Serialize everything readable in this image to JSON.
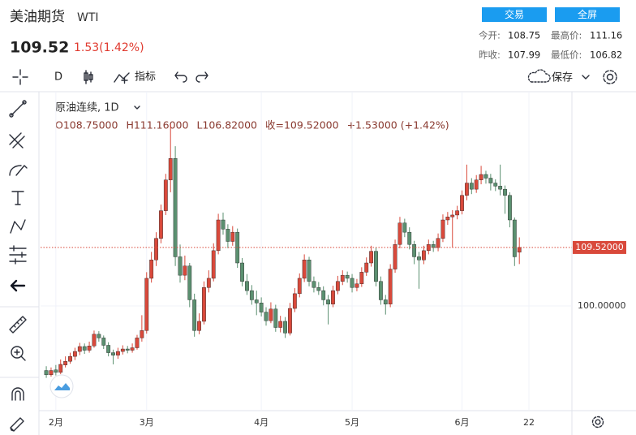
{
  "header": {
    "title": "美油期货",
    "symbol": "WTI",
    "price": "109.52",
    "change": "1.53(1.42%)",
    "buttons": [
      "交易",
      "全屏"
    ],
    "stats": [
      {
        "label": "今开:",
        "value": "108.75"
      },
      {
        "label": "最高价:",
        "value": "111.16"
      },
      {
        "label": "昨收:",
        "value": "107.99"
      },
      {
        "label": "最低价:",
        "value": "106.82"
      }
    ]
  },
  "toolbar": {
    "interval": "D",
    "indicators": "指标",
    "save": "保存"
  },
  "chart": {
    "type": "candlestick",
    "legend_title": "原油连续, 1D",
    "legend_values": [
      "O108.75000",
      "H111.16000",
      "L106.82000",
      "收=109.52000",
      "+1.53000 (+1.42%)"
    ],
    "up_color": "#d9493b",
    "down_color": "#5b9070",
    "ylim": [
      83.1,
      134.6
    ],
    "yticks": [
      {
        "value": 100,
        "label": "100.00000"
      }
    ],
    "last_price": {
      "value": 109.52,
      "label": "109.52000"
    },
    "xlim": [
      -1.2,
      110
    ],
    "xticks": [
      {
        "value": 2,
        "label": "2月"
      },
      {
        "value": 21,
        "label": "3月"
      },
      {
        "value": 45,
        "label": "4月"
      },
      {
        "value": 64,
        "label": "5月"
      },
      {
        "value": 87,
        "label": "6月"
      },
      {
        "value": 101,
        "label": "22"
      }
    ],
    "grid": true,
    "ohlc": [
      [
        89.5,
        90.2,
        88.3,
        88.8
      ],
      [
        88.8,
        90.0,
        88.5,
        89.5
      ],
      [
        89.6,
        90.4,
        88.7,
        89.2
      ],
      [
        89.2,
        91.3,
        88.9,
        90.5
      ],
      [
        90.4,
        91.8,
        90.0,
        91.0
      ],
      [
        91.0,
        92.4,
        90.6,
        91.8
      ],
      [
        91.8,
        93.2,
        91.2,
        92.6
      ],
      [
        92.6,
        94.0,
        92.0,
        93.4
      ],
      [
        93.4,
        93.9,
        92.2,
        92.8
      ],
      [
        92.8,
        94.2,
        92.4,
        93.5
      ],
      [
        93.5,
        96.0,
        93.2,
        95.4
      ],
      [
        95.4,
        95.9,
        94.2,
        94.8
      ],
      [
        94.8,
        95.2,
        93.0,
        93.6
      ],
      [
        93.6,
        94.1,
        91.8,
        92.4
      ],
      [
        92.4,
        92.9,
        90.5,
        92.0
      ],
      [
        92.0,
        93.2,
        91.4,
        92.6
      ],
      [
        92.6,
        93.6,
        92.1,
        93.0
      ],
      [
        93.0,
        93.5,
        92.3,
        92.8
      ],
      [
        92.8,
        93.9,
        92.4,
        93.2
      ],
      [
        93.2,
        95.3,
        92.9,
        94.8
      ],
      [
        94.8,
        98.5,
        94.2,
        96.0
      ],
      [
        96.0,
        105.5,
        95.5,
        104.5
      ],
      [
        104.5,
        108.8,
        103.8,
        107.5
      ],
      [
        107.5,
        112.0,
        106.5,
        111.0
      ],
      [
        111.0,
        116.5,
        110.2,
        115.5
      ],
      [
        115.5,
        121.5,
        114.8,
        120.5
      ],
      [
        120.5,
        129.6,
        118.5,
        124.0
      ],
      [
        124.0,
        126.0,
        106.5,
        108.0
      ],
      [
        108.0,
        110.0,
        103.8,
        105.0
      ],
      [
        105.0,
        108.2,
        104.2,
        106.5
      ],
      [
        106.5,
        107.0,
        99.8,
        101.0
      ],
      [
        101.0,
        102.0,
        95.0,
        96.0
      ],
      [
        96.0,
        98.8,
        95.4,
        97.5
      ],
      [
        97.5,
        104.0,
        97.0,
        103.0
      ],
      [
        103.0,
        105.8,
        102.2,
        104.5
      ],
      [
        104.5,
        110.2,
        104.0,
        109.0
      ],
      [
        109.0,
        115.0,
        108.4,
        114.0
      ],
      [
        114.0,
        115.2,
        111.6,
        112.5
      ],
      [
        112.5,
        113.3,
        109.4,
        110.5
      ],
      [
        110.5,
        113.0,
        109.8,
        112.0
      ],
      [
        112.0,
        112.6,
        106.2,
        107.0
      ],
      [
        107.0,
        107.8,
        103.2,
        104.0
      ],
      [
        104.0,
        105.2,
        101.8,
        102.5
      ],
      [
        102.5,
        103.4,
        100.2,
        101.0
      ],
      [
        101.0,
        102.5,
        98.5,
        100.5
      ],
      [
        100.5,
        101.4,
        98.3,
        99.0
      ],
      [
        99.0,
        99.8,
        96.8,
        97.6
      ],
      [
        97.6,
        100.6,
        97.2,
        99.5
      ],
      [
        99.5,
        100.2,
        95.8,
        96.5
      ],
      [
        96.5,
        98.4,
        95.7,
        97.5
      ],
      [
        97.5,
        98.2,
        94.8,
        95.6
      ],
      [
        95.6,
        100.5,
        95.2,
        99.6
      ],
      [
        99.6,
        102.9,
        99.0,
        102.0
      ],
      [
        102.0,
        105.3,
        101.4,
        104.5
      ],
      [
        104.5,
        108.4,
        103.9,
        107.5
      ],
      [
        107.5,
        108.0,
        103.2,
        104.0
      ],
      [
        104.0,
        104.8,
        102.2,
        103.0
      ],
      [
        103.0,
        103.9,
        101.8,
        102.5
      ],
      [
        102.5,
        103.2,
        100.1,
        101.0
      ],
      [
        101.0,
        101.8,
        97.0,
        100.3
      ],
      [
        100.3,
        103.3,
        99.8,
        102.5
      ],
      [
        102.5,
        104.9,
        101.9,
        104.0
      ],
      [
        104.0,
        105.8,
        103.4,
        105.0
      ],
      [
        105.0,
        105.6,
        103.8,
        104.5
      ],
      [
        104.5,
        105.2,
        102.2,
        103.0
      ],
      [
        103.0,
        104.4,
        102.4,
        103.6
      ],
      [
        103.6,
        106.3,
        103.1,
        105.5
      ],
      [
        105.5,
        107.9,
        104.9,
        107.0
      ],
      [
        107.0,
        109.8,
        106.4,
        108.9
      ],
      [
        108.9,
        109.5,
        103.2,
        104.0
      ],
      [
        104.0,
        104.8,
        100.2,
        101.0
      ],
      [
        101.0,
        101.8,
        98.6,
        100.3
      ],
      [
        100.3,
        106.8,
        99.8,
        106.0
      ],
      [
        106.0,
        110.8,
        105.4,
        110.0
      ],
      [
        110.0,
        114.5,
        109.4,
        113.5
      ],
      [
        113.5,
        114.2,
        111.2,
        112.0
      ],
      [
        112.0,
        112.8,
        109.2,
        110.0
      ],
      [
        110.0,
        110.6,
        106.8,
        108.0
      ],
      [
        108.0,
        108.8,
        102.8,
        107.5
      ],
      [
        107.5,
        109.8,
        106.8,
        109.0
      ],
      [
        109.0,
        110.8,
        108.4,
        110.0
      ],
      [
        110.0,
        110.6,
        108.8,
        109.5
      ],
      [
        109.5,
        111.8,
        108.9,
        111.0
      ],
      [
        111.0,
        114.9,
        110.4,
        114.0
      ],
      [
        114.0,
        115.3,
        113.2,
        114.5
      ],
      [
        114.5,
        115.6,
        109.5,
        114.8
      ],
      [
        114.8,
        116.3,
        114.1,
        115.5
      ],
      [
        115.5,
        118.8,
        114.9,
        118.0
      ],
      [
        118.0,
        123.0,
        117.2,
        120.0
      ],
      [
        120.0,
        120.8,
        118.2,
        119.0
      ],
      [
        119.0,
        121.3,
        118.4,
        120.5
      ],
      [
        120.5,
        122.8,
        119.8,
        121.4
      ],
      [
        121.4,
        122.0,
        119.9,
        120.8
      ],
      [
        120.8,
        121.5,
        118.8,
        120.0
      ],
      [
        120.0,
        120.6,
        118.7,
        119.5
      ],
      [
        119.5,
        123.0,
        118.0,
        119.0
      ],
      [
        119.0,
        119.6,
        115.0,
        118.0
      ],
      [
        118.0,
        118.5,
        112.8,
        114.0
      ],
      [
        114.0,
        114.4,
        106.5,
        108.0
      ],
      [
        108.75,
        111.16,
        106.82,
        109.52
      ]
    ]
  }
}
